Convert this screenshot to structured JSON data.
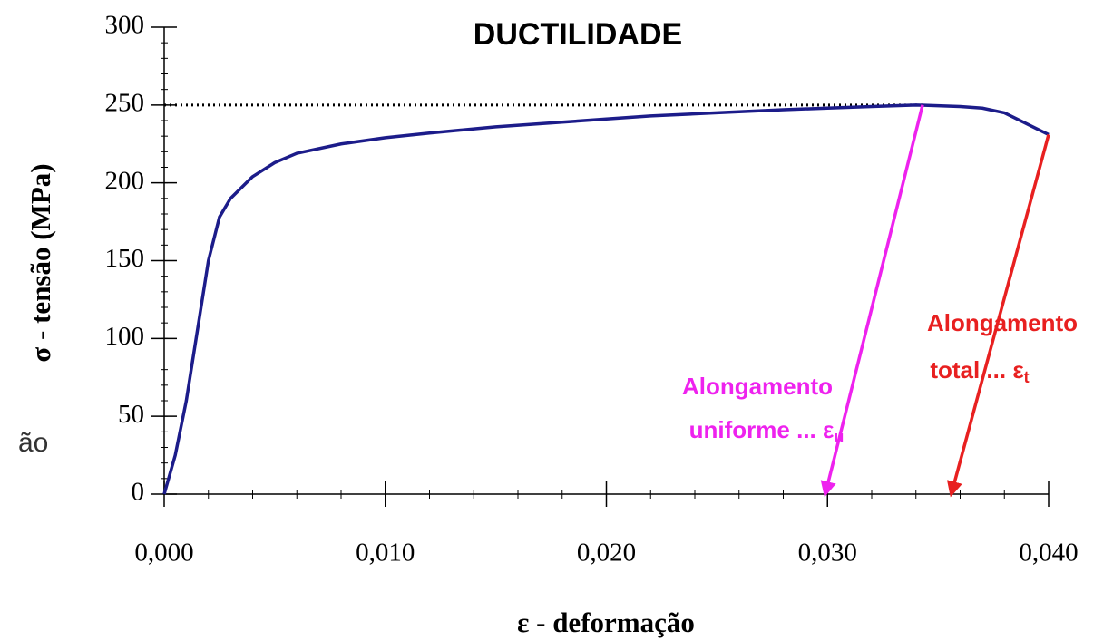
{
  "chart_data": {
    "type": "line",
    "title": "DUCTILIDADE",
    "x_label": "ε - deformação",
    "y_label": "σ - tensão (MPa)",
    "fragment": "ão",
    "x": [
      0,
      0.0005,
      0.001,
      0.0015,
      0.002,
      0.0025,
      0.003,
      0.004,
      0.005,
      0.006,
      0.008,
      0.01,
      0.012,
      0.015,
      0.018,
      0.02,
      0.022,
      0.025,
      0.028,
      0.03,
      0.032,
      0.034,
      0.036,
      0.037,
      0.038,
      0.039,
      0.04
    ],
    "series": [
      {
        "name": "σ",
        "color": "#1c1c8a",
        "values": [
          0,
          25,
          60,
          105,
          150,
          178,
          190,
          204,
          213,
          219,
          225,
          229,
          232,
          236,
          239,
          241,
          243,
          245,
          247,
          248,
          249,
          250,
          249,
          248,
          245,
          238,
          231
        ]
      }
    ],
    "xlim": [
      0,
      0.04
    ],
    "ylim": [
      0,
      300
    ],
    "xticks": [
      {
        "value": 0,
        "label": "0,000"
      },
      {
        "value": 0.01,
        "label": "0,010"
      },
      {
        "value": 0.02,
        "label": "0,020"
      },
      {
        "value": 0.03,
        "label": "0,030"
      },
      {
        "value": 0.04,
        "label": "0,040"
      }
    ],
    "yticks": [
      0,
      50,
      100,
      150,
      200,
      250,
      300
    ],
    "x_minor_step": 0.002,
    "y_minor_step": 10,
    "hline": {
      "y": 250,
      "x_end": 0.0343,
      "color": "#000000"
    },
    "annotations": [
      {
        "text": "Alongamento",
        "text2": "uniforme ... ε",
        "subscript": "u",
        "color": "#ee22ee",
        "from": [
          0.0343,
          250
        ],
        "to": [
          0.0299,
          0
        ]
      },
      {
        "text": "Alongamento",
        "text2": "total ... ε",
        "subscript": "t",
        "color": "#e82020",
        "from": [
          0.04,
          231
        ],
        "to": [
          0.0356,
          0
        ]
      }
    ]
  }
}
